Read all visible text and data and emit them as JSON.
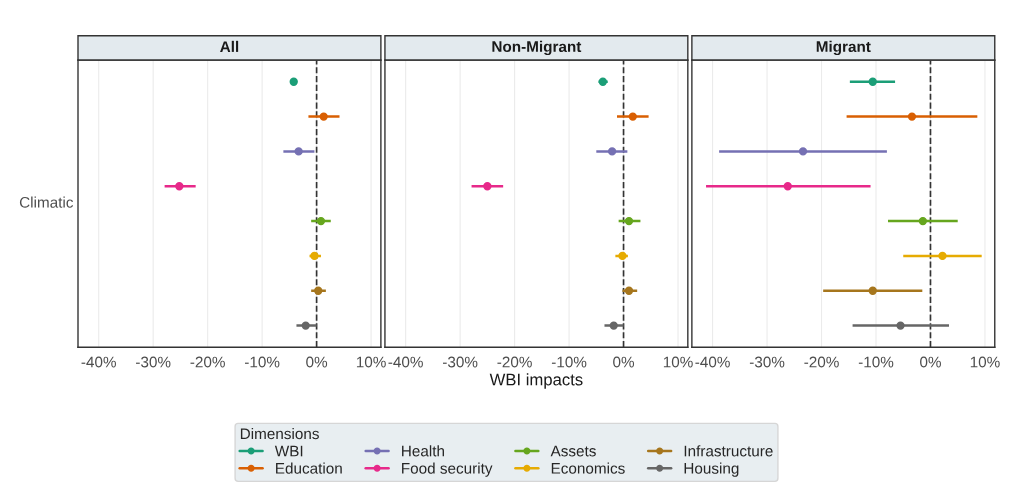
{
  "chart_data": [
    {
      "type": "scatter",
      "title": "All",
      "orientation": "horizontal",
      "categories": [
        null,
        null,
        null,
        null,
        null,
        null,
        null,
        null
      ],
      "xlim": [
        -43.8,
        11.8
      ],
      "xticks": [
        {
          "value": -40,
          "label": "-40%"
        },
        {
          "value": -30,
          "label": "-30%"
        },
        {
          "value": -20,
          "label": "-20%"
        },
        {
          "value": -10,
          "label": "-10%"
        },
        {
          "value": 0,
          "label": "0%"
        },
        {
          "value": 10,
          "label": "10%"
        }
      ],
      "annotations": [
        "Climatic"
      ],
      "grid": "x",
      "marker": "circle",
      "legend": "bottom",
      "legend_title": "Dimensions",
      "ref_lines": [
        {
          "axis": "x",
          "value": 0,
          "line_style": "dashed",
          "color": "#333333"
        }
      ],
      "series": [
        {
          "name": "WBI",
          "color": "#1b9e77",
          "values": [
            -4.2,
            null,
            null,
            null,
            null,
            null,
            null,
            null
          ],
          "errors": [
            [
              -4.8,
              -3.6
            ],
            null,
            null,
            null,
            null,
            null,
            null,
            null
          ]
        },
        {
          "name": "Education",
          "color": "#d95f02",
          "values": [
            null,
            1.3,
            null,
            null,
            null,
            null,
            null,
            null
          ],
          "errors": [
            null,
            [
              -1.5,
              4.2
            ],
            null,
            null,
            null,
            null,
            null,
            null
          ]
        },
        {
          "name": "Health",
          "color": "#7570b3",
          "values": [
            null,
            null,
            -3.3,
            null,
            null,
            null,
            null,
            null
          ],
          "errors": [
            null,
            null,
            [
              -6.1,
              -0.4
            ],
            null,
            null,
            null,
            null,
            null
          ]
        },
        {
          "name": "Food security",
          "color": "#e7298a",
          "values": [
            null,
            null,
            null,
            -25.2,
            null,
            null,
            null,
            null
          ],
          "errors": [
            null,
            null,
            null,
            [
              -27.9,
              -22.2
            ],
            null,
            null,
            null,
            null
          ]
        },
        {
          "name": "Assets",
          "color": "#66a61e",
          "values": [
            null,
            null,
            null,
            null,
            0.8,
            null,
            null,
            null
          ],
          "errors": [
            null,
            null,
            null,
            null,
            [
              -1.0,
              2.6
            ],
            null,
            null,
            null
          ]
        },
        {
          "name": "Economics",
          "color": "#e6ab02",
          "values": [
            null,
            null,
            null,
            null,
            null,
            -0.4,
            null,
            null
          ],
          "errors": [
            null,
            null,
            null,
            null,
            null,
            [
              -1.3,
              0.8
            ],
            null,
            null
          ]
        },
        {
          "name": "Infrastructure",
          "color": "#a6761d",
          "values": [
            null,
            null,
            null,
            null,
            null,
            null,
            0.3,
            null
          ],
          "errors": [
            null,
            null,
            null,
            null,
            null,
            null,
            [
              -1.0,
              1.7
            ],
            null
          ]
        },
        {
          "name": "Housing",
          "color": "#666666",
          "values": [
            null,
            null,
            null,
            null,
            null,
            null,
            null,
            -2.0
          ],
          "errors": [
            null,
            null,
            null,
            null,
            null,
            null,
            null,
            [
              -3.7,
              0
            ]
          ]
        }
      ]
    },
    {
      "type": "scatter",
      "title": "Non-Migrant",
      "xlabel": "WBI impacts",
      "orientation": "horizontal",
      "categories": [
        null,
        null,
        null,
        null,
        null,
        null,
        null,
        null
      ],
      "xlim": [
        -43.8,
        11.8
      ],
      "tick_labels": "x",
      "xticks": [
        {
          "value": -40,
          "label": "-40%"
        },
        {
          "value": -30,
          "label": "-30%"
        },
        {
          "value": -20,
          "label": "-20%"
        },
        {
          "value": -10,
          "label": "-10%"
        },
        {
          "value": 0,
          "label": "0%"
        },
        {
          "value": 10,
          "label": "10%"
        }
      ],
      "grid": "x",
      "marker": "circle",
      "ref_lines": [
        {
          "axis": "x",
          "value": 0,
          "line_style": "dashed",
          "color": "#333333"
        }
      ],
      "series": [
        {
          "color": "#1b9e77",
          "values": [
            -3.8,
            null,
            null,
            null,
            null,
            null,
            null,
            null
          ],
          "errors": [
            [
              -4.6,
              -2.9
            ],
            null,
            null,
            null,
            null,
            null,
            null,
            null
          ]
        },
        {
          "color": "#d95f02",
          "values": [
            null,
            1.7,
            null,
            null,
            null,
            null,
            null,
            null
          ],
          "errors": [
            null,
            [
              -1.2,
              4.6
            ],
            null,
            null,
            null,
            null,
            null,
            null
          ]
        },
        {
          "color": "#7570b3",
          "values": [
            null,
            null,
            -2.1,
            null,
            null,
            null,
            null,
            null
          ],
          "errors": [
            null,
            null,
            [
              -5.0,
              0.7
            ],
            null,
            null,
            null,
            null,
            null
          ]
        },
        {
          "color": "#e7298a",
          "values": [
            null,
            null,
            null,
            -25.0,
            null,
            null,
            null,
            null
          ],
          "errors": [
            null,
            null,
            null,
            [
              -27.9,
              -22.1
            ],
            null,
            null,
            null,
            null
          ]
        },
        {
          "color": "#66a61e",
          "values": [
            null,
            null,
            null,
            null,
            1.0,
            null,
            null,
            null
          ],
          "errors": [
            null,
            null,
            null,
            null,
            [
              -0.9,
              3.1
            ],
            null,
            null,
            null
          ]
        },
        {
          "color": "#e6ab02",
          "values": [
            null,
            null,
            null,
            null,
            null,
            -0.2,
            null,
            null
          ],
          "errors": [
            null,
            null,
            null,
            null,
            null,
            [
              -1.5,
              0.8
            ],
            null,
            null
          ]
        },
        {
          "color": "#a6761d",
          "values": [
            null,
            null,
            null,
            null,
            null,
            null,
            1.0,
            null
          ],
          "errors": [
            null,
            null,
            null,
            null,
            null,
            null,
            [
              -0.2,
              2.5
            ],
            null
          ]
        },
        {
          "color": "#666666",
          "values": [
            null,
            null,
            null,
            null,
            null,
            null,
            null,
            -1.8
          ],
          "errors": [
            null,
            null,
            null,
            null,
            null,
            null,
            null,
            [
              -3.5,
              0
            ]
          ]
        }
      ]
    },
    {
      "type": "scatter",
      "title": "Migrant",
      "orientation": "horizontal",
      "categories": [
        null,
        null,
        null,
        null,
        null,
        null,
        null,
        null
      ],
      "xlim": [
        -43.8,
        11.8
      ],
      "tick_labels": "x",
      "xticks": [
        {
          "value": -40,
          "label": "-40%"
        },
        {
          "value": -30,
          "label": "-30%"
        },
        {
          "value": -20,
          "label": "-20%"
        },
        {
          "value": -10,
          "label": "-10%"
        },
        {
          "value": 0,
          "label": "0%"
        },
        {
          "value": 10,
          "label": "10%"
        }
      ],
      "grid": "x",
      "marker": "circle",
      "ref_lines": [
        {
          "axis": "x",
          "value": 0,
          "line_style": "dashed",
          "color": "#333333"
        }
      ],
      "series": [
        {
          "color": "#1b9e77",
          "values": [
            -10.6,
            null,
            null,
            null,
            null,
            null,
            null,
            null
          ],
          "errors": [
            [
              -14.8,
              -6.5
            ],
            null,
            null,
            null,
            null,
            null,
            null,
            null
          ]
        },
        {
          "color": "#d95f02",
          "values": [
            null,
            -3.4,
            null,
            null,
            null,
            null,
            null,
            null
          ],
          "errors": [
            null,
            [
              -15.4,
              8.6
            ],
            null,
            null,
            null,
            null,
            null,
            null
          ]
        },
        {
          "color": "#7570b3",
          "values": [
            null,
            null,
            -23.4,
            null,
            null,
            null,
            null,
            null
          ],
          "errors": [
            null,
            null,
            [
              -38.8,
              -8.0
            ],
            null,
            null,
            null,
            null,
            null
          ]
        },
        {
          "color": "#e7298a",
          "values": [
            null,
            null,
            null,
            -26.2,
            null,
            null,
            null,
            null
          ],
          "errors": [
            null,
            null,
            null,
            [
              -41.2,
              -11.0
            ],
            null,
            null,
            null,
            null
          ]
        },
        {
          "color": "#66a61e",
          "values": [
            null,
            null,
            null,
            null,
            -1.4,
            null,
            null,
            null
          ],
          "errors": [
            null,
            null,
            null,
            null,
            [
              -7.8,
              5.0
            ],
            null,
            null,
            null
          ]
        },
        {
          "color": "#e6ab02",
          "values": [
            null,
            null,
            null,
            null,
            null,
            2.2,
            null,
            null
          ],
          "errors": [
            null,
            null,
            null,
            null,
            null,
            [
              -5.0,
              9.4
            ],
            null,
            null
          ]
        },
        {
          "color": "#a6761d",
          "values": [
            null,
            null,
            null,
            null,
            null,
            null,
            -10.6,
            null
          ],
          "errors": [
            null,
            null,
            null,
            null,
            null,
            null,
            [
              -19.7,
              -1.5
            ],
            null
          ]
        },
        {
          "color": "#666666",
          "values": [
            null,
            null,
            null,
            null,
            null,
            null,
            null,
            -5.5
          ],
          "errors": [
            null,
            null,
            null,
            null,
            null,
            null,
            null,
            [
              -14.3,
              3.4
            ]
          ]
        }
      ]
    }
  ]
}
